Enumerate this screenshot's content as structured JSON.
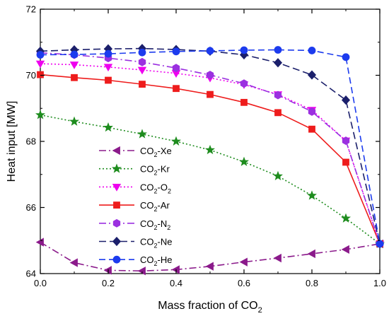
{
  "chart_data": {
    "type": "line",
    "xlabel": "Mass fraction of CO",
    "xlabel_sub": "2",
    "ylabel": "Heat input [MW]",
    "xlim": [
      0.0,
      1.0
    ],
    "ylim": [
      64,
      72
    ],
    "xticks": [
      "0.0",
      "0.2",
      "0.4",
      "0.6",
      "0.8",
      "1.0"
    ],
    "yticks": [
      "64",
      "66",
      "68",
      "70",
      "72"
    ],
    "x": [
      0.0,
      0.1,
      0.2,
      0.3,
      0.4,
      0.5,
      0.6,
      0.7,
      0.8,
      0.9,
      1.0
    ],
    "legend_position": "center-left",
    "grid": false,
    "series": [
      {
        "name_main": "CO",
        "name_sub": "2",
        "name_tail": "-Xe",
        "color": "#8B1A8B",
        "dash": "10,4,2,4",
        "marker": "triangle-left",
        "values": [
          64.95,
          64.33,
          64.1,
          64.08,
          64.12,
          64.22,
          64.35,
          64.47,
          64.6,
          64.73,
          64.9
        ]
      },
      {
        "name_main": "CO",
        "name_sub": "2",
        "name_tail": "-Kr",
        "color": "#1E8C1E",
        "dash": "2,3",
        "marker": "star",
        "values": [
          68.8,
          68.6,
          68.42,
          68.22,
          68.0,
          67.74,
          67.38,
          66.95,
          66.36,
          65.67,
          64.9
        ]
      },
      {
        "name_main": "CO",
        "name_sub": "2",
        "name_tail": "-O",
        "name_sub2": "2",
        "color": "#EE00EE",
        "dash": "2,3",
        "marker": "triangle-down",
        "values": [
          70.35,
          70.32,
          70.25,
          70.16,
          70.06,
          69.92,
          69.72,
          69.42,
          68.95,
          68.02,
          64.9
        ]
      },
      {
        "name_main": "CO",
        "name_sub": "2",
        "name_tail": "-Ar",
        "color": "#EE1C1C",
        "dash": "",
        "marker": "square",
        "values": [
          70.02,
          69.93,
          69.85,
          69.73,
          69.6,
          69.42,
          69.18,
          68.87,
          68.37,
          67.37,
          64.9
        ]
      },
      {
        "name_main": "CO",
        "name_sub": "2",
        "name_tail": "-N",
        "name_sub2": "2",
        "color": "#9B30E0",
        "dash": "10,4,2,4",
        "marker": "hexagon",
        "values": [
          70.68,
          70.62,
          70.52,
          70.4,
          70.22,
          70.01,
          69.75,
          69.4,
          68.9,
          68.02,
          64.9
        ]
      },
      {
        "name_main": "CO",
        "name_sub": "2",
        "name_tail": "-Ne",
        "color": "#1B1F6B",
        "dash": "10,5",
        "marker": "diamond",
        "values": [
          70.73,
          70.77,
          70.8,
          70.81,
          70.78,
          70.73,
          70.62,
          70.38,
          70.01,
          69.25,
          64.9
        ]
      },
      {
        "name_main": "CO",
        "name_sub": "2",
        "name_tail": "-He",
        "color": "#1C3BEE",
        "dash": "9,5",
        "marker": "circle",
        "values": [
          70.62,
          70.63,
          70.65,
          70.69,
          70.72,
          70.74,
          70.76,
          70.77,
          70.75,
          70.55,
          64.9
        ]
      }
    ]
  }
}
